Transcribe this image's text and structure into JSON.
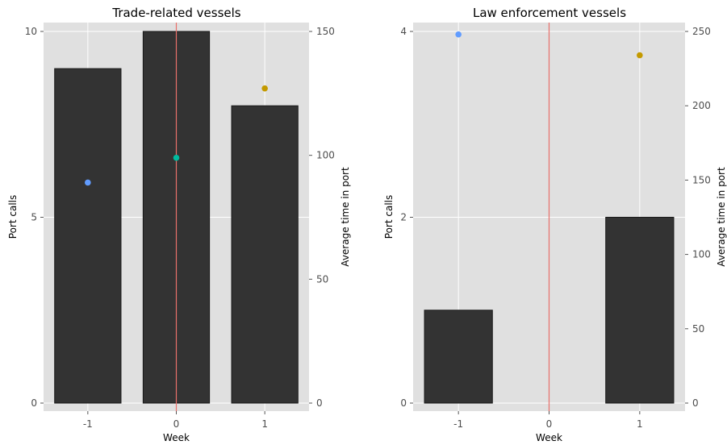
{
  "chart_data": [
    {
      "type": "bar",
      "title": "Trade-related vessels",
      "xlabel": "Week",
      "ylabel": "Port calls",
      "y2label": "Average time in port",
      "categories": [
        "-1",
        "0",
        "1"
      ],
      "x": [
        -1,
        0,
        1
      ],
      "xlim": [
        -1.5,
        1.5
      ],
      "values": [
        9,
        10,
        8
      ],
      "ylim": [
        0,
        10
      ],
      "yticks": [
        "0",
        "5",
        "10"
      ],
      "ytick_values": [
        0,
        5,
        10
      ],
      "y2lim": [
        0,
        150
      ],
      "y2ticks": [
        "0",
        "50",
        "100",
        "150"
      ],
      "y2tick_values": [
        0,
        50,
        100,
        150
      ],
      "reference_line_x": 0,
      "points": [
        {
          "x": -1,
          "y2": 89,
          "color": "#619cff"
        },
        {
          "x": 0,
          "y2": 99,
          "color": "#00ba9e"
        },
        {
          "x": 1,
          "y2": 127,
          "color": "#c49a00"
        }
      ],
      "bar_color": "#333333",
      "panel_background": "#e0e0e0",
      "grid": true,
      "reference_line_color": "#e8716b"
    },
    {
      "type": "bar",
      "title": "Law enforcement vessels",
      "xlabel": "Week",
      "ylabel": "Port calls",
      "y2label": "Average time in port",
      "categories": [
        "-1",
        "0",
        "1"
      ],
      "x": [
        -1,
        0,
        1
      ],
      "xlim": [
        -1.5,
        1.5
      ],
      "values": [
        1,
        null,
        2
      ],
      "ylim": [
        0,
        4
      ],
      "yticks": [
        "0",
        "2",
        "4"
      ],
      "ytick_values": [
        0,
        2,
        4
      ],
      "y2lim": [
        0,
        250
      ],
      "y2ticks": [
        "0",
        "50",
        "100",
        "150",
        "200",
        "250"
      ],
      "y2tick_values": [
        0,
        50,
        100,
        150,
        200,
        250
      ],
      "reference_line_x": 0,
      "points": [
        {
          "x": -1,
          "y2": 248,
          "color": "#619cff"
        },
        {
          "x": 1,
          "y2": 234,
          "color": "#c49a00"
        }
      ],
      "bar_color": "#333333",
      "panel_background": "#e0e0e0",
      "grid": true,
      "reference_line_color": "#e8716b"
    }
  ]
}
